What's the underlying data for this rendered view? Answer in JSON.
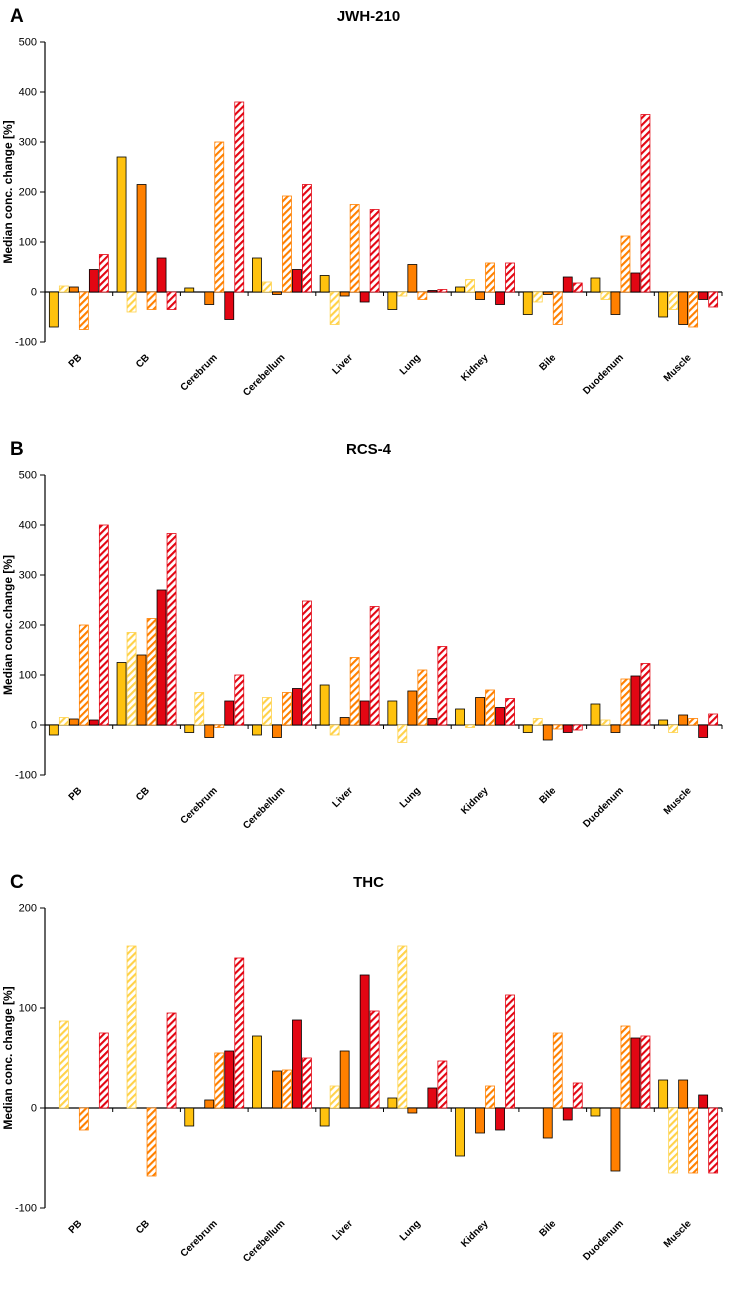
{
  "figure": {
    "description": "Three stacked bar charts of median concentration change by tissue"
  },
  "chart_data": [
    {
      "type": "bar",
      "panel": "A",
      "title": "JWH-210",
      "ylabel": "Median conc. change [%]",
      "ylim": [
        -100,
        500
      ],
      "ytick_step": 100,
      "grid": false,
      "legend": "none",
      "categories": [
        "PB",
        "CB",
        "Cerebrum",
        "Cerebellum",
        "Liver",
        "Lung",
        "Kidney",
        "Bile",
        "Duodenum",
        "Muscle"
      ],
      "series": [
        {
          "name": "yellow-solid",
          "style": "solid",
          "color": "#FFC20E",
          "values": [
            -70,
            270,
            8,
            68,
            33,
            -35,
            10,
            -45,
            28,
            -50
          ]
        },
        {
          "name": "yellow-hatched",
          "style": "hatched",
          "color": "#FFD24A",
          "values": [
            12,
            -40,
            0,
            20,
            -65,
            -8,
            25,
            -20,
            -15,
            -35
          ]
        },
        {
          "name": "orange-solid",
          "style": "solid",
          "color": "#FF8000",
          "values": [
            10,
            215,
            -25,
            -5,
            -8,
            55,
            -15,
            -5,
            -45,
            -65
          ]
        },
        {
          "name": "orange-hatched",
          "style": "hatched",
          "color": "#FF8000",
          "values": [
            -75,
            -35,
            300,
            192,
            175,
            -15,
            58,
            -65,
            112,
            -70
          ]
        },
        {
          "name": "red-solid",
          "style": "solid",
          "color": "#E30613",
          "values": [
            45,
            68,
            -55,
            45,
            -20,
            3,
            -25,
            30,
            38,
            -15
          ]
        },
        {
          "name": "red-hatched",
          "style": "hatched",
          "color": "#E30613",
          "values": [
            75,
            -35,
            380,
            215,
            165,
            5,
            58,
            18,
            355,
            -30
          ]
        }
      ]
    },
    {
      "type": "bar",
      "panel": "B",
      "title": "RCS-4",
      "ylabel": "Median conc.change [%]",
      "ylim": [
        -100,
        500
      ],
      "ytick_step": 100,
      "grid": false,
      "legend": "none",
      "categories": [
        "PB",
        "CB",
        "Cerebrum",
        "Cerebellum",
        "Liver",
        "Lung",
        "Kidney",
        "Bile",
        "Duodenum",
        "Muscle"
      ],
      "series": [
        {
          "name": "yellow-solid",
          "style": "solid",
          "color": "#FFC20E",
          "values": [
            -20,
            125,
            -15,
            -20,
            80,
            48,
            32,
            -15,
            42,
            10
          ]
        },
        {
          "name": "yellow-hatched",
          "style": "hatched",
          "color": "#FFD24A",
          "values": [
            15,
            185,
            65,
            55,
            -20,
            -35,
            -5,
            13,
            10,
            -15
          ]
        },
        {
          "name": "orange-solid",
          "style": "solid",
          "color": "#FF8000",
          "values": [
            12,
            140,
            -25,
            -25,
            15,
            68,
            55,
            -30,
            -15,
            20
          ]
        },
        {
          "name": "orange-hatched",
          "style": "hatched",
          "color": "#FF8000",
          "values": [
            200,
            213,
            -5,
            65,
            135,
            110,
            70,
            -8,
            92,
            13
          ]
        },
        {
          "name": "red-solid",
          "style": "solid",
          "color": "#E30613",
          "values": [
            10,
            270,
            48,
            73,
            48,
            13,
            35,
            -15,
            98,
            -25
          ]
        },
        {
          "name": "red-hatched",
          "style": "hatched",
          "color": "#E30613",
          "values": [
            400,
            383,
            100,
            248,
            237,
            157,
            53,
            -10,
            123,
            22
          ]
        }
      ]
    },
    {
      "type": "bar",
      "panel": "C",
      "title": "THC",
      "ylabel": "Median conc. change [%]",
      "ylim": [
        -100,
        200
      ],
      "ytick_step": 100,
      "grid": false,
      "legend": "none",
      "categories": [
        "PB",
        "CB",
        "Cerebrum",
        "Cerebellum",
        "Liver",
        "Lung",
        "Kidney",
        "Bile",
        "Duodenum",
        "Muscle"
      ],
      "series": [
        {
          "name": "yellow-solid",
          "style": "solid",
          "color": "#FFC20E",
          "values": [
            0,
            0,
            -18,
            72,
            -18,
            10,
            -48,
            0,
            -8,
            28
          ]
        },
        {
          "name": "yellow-hatched",
          "style": "hatched",
          "color": "#FFD24A",
          "values": [
            87,
            162,
            0,
            0,
            22,
            162,
            0,
            0,
            0,
            -65
          ]
        },
        {
          "name": "orange-solid",
          "style": "solid",
          "color": "#FF8000",
          "values": [
            0,
            0,
            8,
            37,
            57,
            -5,
            -25,
            -30,
            -63,
            28
          ]
        },
        {
          "name": "orange-hatched",
          "style": "hatched",
          "color": "#FF8000",
          "values": [
            -22,
            -68,
            55,
            38,
            0,
            0,
            22,
            75,
            82,
            -65
          ]
        },
        {
          "name": "red-solid",
          "style": "solid",
          "color": "#E30613",
          "values": [
            0,
            0,
            57,
            88,
            133,
            20,
            -22,
            -12,
            70,
            13
          ]
        },
        {
          "name": "red-hatched",
          "style": "hatched",
          "color": "#E30613",
          "values": [
            75,
            95,
            150,
            50,
            97,
            47,
            113,
            25,
            72,
            -65
          ]
        }
      ]
    }
  ]
}
